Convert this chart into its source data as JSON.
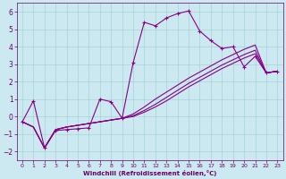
{
  "xlabel": "Windchill (Refroidissement éolien,°C)",
  "ylabel": "",
  "bg_color": "#cce8f0",
  "line_color": "#880088",
  "xlim": [
    -0.5,
    23.5
  ],
  "ylim": [
    -2.5,
    6.5
  ],
  "xticks": [
    0,
    1,
    2,
    3,
    4,
    5,
    6,
    7,
    8,
    9,
    10,
    11,
    12,
    13,
    14,
    15,
    16,
    17,
    18,
    19,
    20,
    21,
    22,
    23
  ],
  "yticks": [
    -2,
    -1,
    0,
    1,
    2,
    3,
    4,
    5,
    6
  ],
  "line1_x": [
    0,
    1,
    2,
    3,
    4,
    5,
    6,
    7,
    8,
    9,
    10,
    11,
    12,
    13,
    14,
    15,
    16,
    17,
    18,
    19,
    20,
    21,
    22,
    23
  ],
  "line1_y": [
    -0.3,
    0.9,
    -1.8,
    -0.8,
    -0.75,
    -0.7,
    -0.65,
    1.0,
    0.85,
    -0.1,
    3.1,
    5.4,
    5.2,
    5.65,
    5.9,
    6.05,
    4.9,
    4.35,
    3.9,
    4.0,
    2.85,
    3.45,
    2.5,
    2.6
  ],
  "line2_x": [
    0,
    1,
    2,
    3,
    4,
    5,
    6,
    7,
    8,
    9,
    10,
    11,
    12,
    13,
    14,
    15,
    16,
    17,
    18,
    19,
    20,
    21,
    22,
    23
  ],
  "line2_y": [
    -0.3,
    -0.6,
    -1.8,
    -0.75,
    -0.6,
    -0.5,
    -0.4,
    -0.3,
    -0.2,
    -0.1,
    0.15,
    0.55,
    1.0,
    1.4,
    1.8,
    2.2,
    2.55,
    2.9,
    3.25,
    3.55,
    3.85,
    4.1,
    2.5,
    2.6
  ],
  "line3_x": [
    0,
    1,
    2,
    3,
    4,
    5,
    6,
    7,
    8,
    9,
    10,
    11,
    12,
    13,
    14,
    15,
    16,
    17,
    18,
    19,
    20,
    21,
    22,
    23
  ],
  "line3_y": [
    -0.3,
    -0.6,
    -1.8,
    -0.75,
    -0.6,
    -0.5,
    -0.4,
    -0.3,
    -0.2,
    -0.1,
    0.05,
    0.35,
    0.7,
    1.1,
    1.5,
    1.9,
    2.25,
    2.6,
    2.95,
    3.25,
    3.55,
    3.8,
    2.5,
    2.6
  ],
  "line4_x": [
    0,
    1,
    2,
    3,
    4,
    5,
    6,
    7,
    8,
    9,
    10,
    11,
    12,
    13,
    14,
    15,
    16,
    17,
    18,
    19,
    20,
    21,
    22,
    23
  ],
  "line4_y": [
    -0.3,
    -0.6,
    -1.8,
    -0.75,
    -0.6,
    -0.5,
    -0.4,
    -0.3,
    -0.2,
    -0.1,
    0.0,
    0.25,
    0.55,
    0.9,
    1.3,
    1.7,
    2.05,
    2.4,
    2.75,
    3.05,
    3.35,
    3.6,
    2.5,
    2.6
  ]
}
